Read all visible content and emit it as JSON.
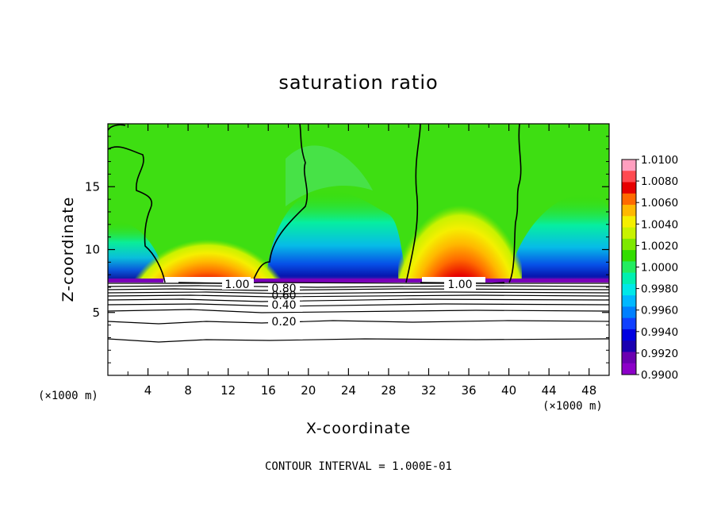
{
  "chart_data": {
    "type": "heatmap",
    "title": "saturation ratio",
    "xlabel": "X-coordinate",
    "ylabel": "Z-coordinate",
    "x_unit": "(×1000 m)",
    "footer": "CONTOUR INTERVAL = 1.000E-01",
    "xlim": [
      0,
      50
    ],
    "ylim": [
      0,
      20
    ],
    "xticks": [
      4,
      8,
      12,
      16,
      20,
      24,
      28,
      32,
      36,
      40,
      44,
      48
    ],
    "yticks": [
      5,
      10,
      15
    ],
    "colorbar": {
      "labels": [
        "1.0100",
        "1.0080",
        "1.0060",
        "1.0040",
        "1.0020",
        "1.0000",
        "0.9980",
        "0.9960",
        "0.9940",
        "0.9920",
        "0.9900"
      ],
      "colors": [
        "#ff9fbf",
        "#ff4a50",
        "#e60000",
        "#ff6a00",
        "#ffb800",
        "#f5ef00",
        "#c8f200",
        "#7ee800",
        "#33dd00",
        "#22ec60",
        "#00f0b0",
        "#00e8e8",
        "#00b8ff",
        "#0080ff",
        "#1040ff",
        "#0000e0",
        "#1a00b0",
        "#6a00b0",
        "#8c00c8"
      ]
    },
    "contour_labels": [
      {
        "text": "1.00",
        "x": 13.8,
        "z": 7.1
      },
      {
        "text": "1.00",
        "x": 35.8,
        "z": 7.1
      },
      {
        "text": "0.80",
        "x": 17.6,
        "z": 6.9
      },
      {
        "text": "0.60",
        "x": 17.6,
        "z": 6.4
      },
      {
        "text": "0.40",
        "x": 17.6,
        "z": 5.6
      },
      {
        "text": "0.20",
        "x": 17.6,
        "z": 4.0
      }
    ]
  }
}
